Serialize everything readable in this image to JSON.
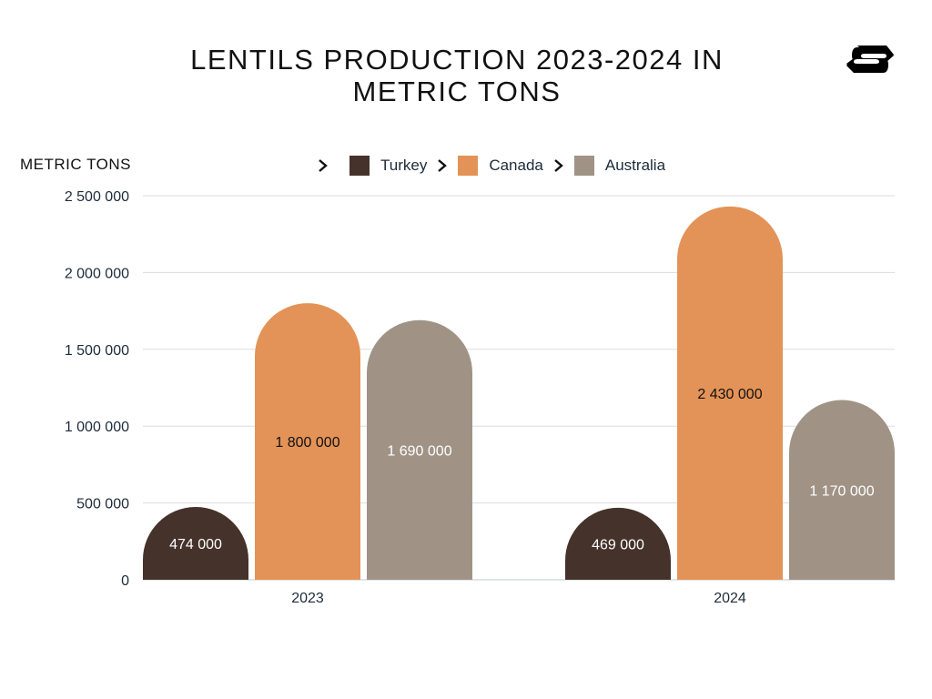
{
  "chart_data": {
    "type": "bar",
    "title": "LENTILS PRODUCTION 2023-2024 IN METRIC TONS",
    "ylabel": "METRIC TONS",
    "xlabel": "",
    "categories": [
      "2023",
      "2024"
    ],
    "series": [
      {
        "name": "Turkey",
        "color": "#45322b",
        "values": [
          474000,
          469000
        ],
        "labels": [
          "474 000",
          "469 000"
        ],
        "label_color": "#ffffff"
      },
      {
        "name": "Canada",
        "color": "#e39357",
        "values": [
          1800000,
          2430000
        ],
        "labels": [
          "1 800 000",
          "2 430 000"
        ],
        "label_color": "#111111"
      },
      {
        "name": "Australia",
        "color": "#a09386",
        "values": [
          1690000,
          1170000
        ],
        "labels": [
          "1 690 000",
          "1 170 000"
        ],
        "label_color": "#ffffff"
      }
    ],
    "ylim": [
      0,
      2500000
    ],
    "yticks": [
      0,
      500000,
      1000000,
      1500000,
      2000000,
      2500000
    ],
    "ytick_labels": [
      "0",
      "500 000",
      "1 000 000",
      "1 500 000",
      "2 000 000",
      "2 500 000"
    ],
    "grid": true,
    "legend_position": "top"
  },
  "logo": "brand-logo"
}
